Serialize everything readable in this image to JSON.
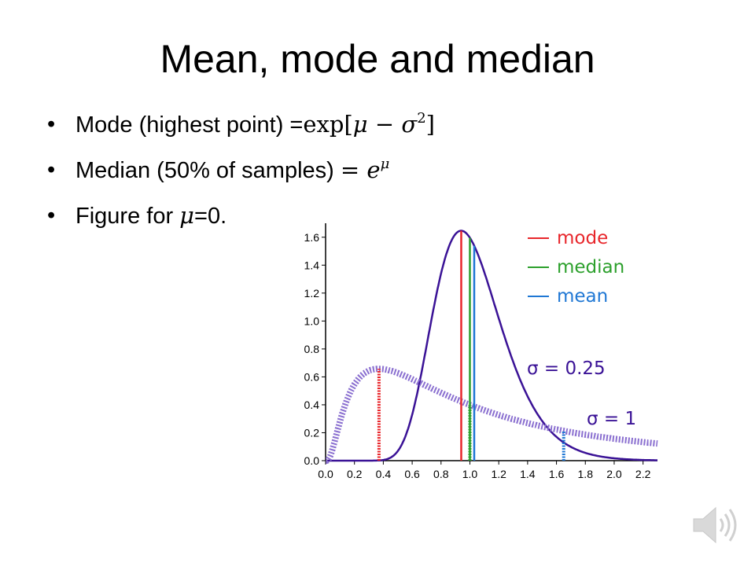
{
  "slide": {
    "title": "Mean, mode and median",
    "bullets": [
      {
        "text": "Mode (highest point) =",
        "math": "exp[μ − σ²]"
      },
      {
        "text": "Median (50% of samples) ",
        "math": "= e^μ"
      },
      {
        "text": "Figure for ",
        "math": "μ",
        "suffix": "=0."
      }
    ]
  },
  "chart_data": {
    "type": "line",
    "title": "",
    "xlabel": "",
    "ylabel": "",
    "xlim": [
      0.0,
      2.3
    ],
    "ylim": [
      0.0,
      1.7
    ],
    "x_ticks": [
      "0.0",
      "0.2",
      "0.4",
      "0.6",
      "0.8",
      "1.0",
      "1.2",
      "1.4",
      "1.6",
      "1.8",
      "2.0",
      "2.2"
    ],
    "y_ticks": [
      "0.0",
      "0.2",
      "0.4",
      "0.6",
      "0.8",
      "1.0",
      "1.2",
      "1.4",
      "1.6"
    ],
    "legend": {
      "placement": "top-right",
      "entries": [
        {
          "label": "mode",
          "color": "#e8262b"
        },
        {
          "label": "median",
          "color": "#2ca02c"
        },
        {
          "label": "mean",
          "color": "#1f77d4"
        }
      ]
    },
    "series": [
      {
        "label": "σ = 0.25",
        "sigma": 0.25,
        "mu": 0,
        "color": "#3a1296",
        "style": "solid"
      },
      {
        "label": "σ = 1",
        "sigma": 1,
        "mu": 0,
        "color": "#8a6fd0",
        "style": "dotted"
      }
    ],
    "markers": [
      {
        "series": "σ = 0.25",
        "kind": "mode",
        "x": 0.94,
        "color": "#e8262b",
        "style": "solid"
      },
      {
        "series": "σ = 0.25",
        "kind": "median",
        "x": 1.0,
        "color": "#2ca02c",
        "style": "solid"
      },
      {
        "series": "σ = 0.25",
        "kind": "mean",
        "x": 1.03,
        "color": "#1f77d4",
        "style": "solid"
      },
      {
        "series": "σ = 1",
        "kind": "mode",
        "x": 0.37,
        "color": "#e8262b",
        "style": "dashed"
      },
      {
        "series": "σ = 1",
        "kind": "median",
        "x": 1.0,
        "color": "#2ca02c",
        "style": "dashed"
      },
      {
        "series": "σ = 1",
        "kind": "mean",
        "x": 1.65,
        "color": "#1f77d4",
        "style": "dashed"
      }
    ]
  }
}
